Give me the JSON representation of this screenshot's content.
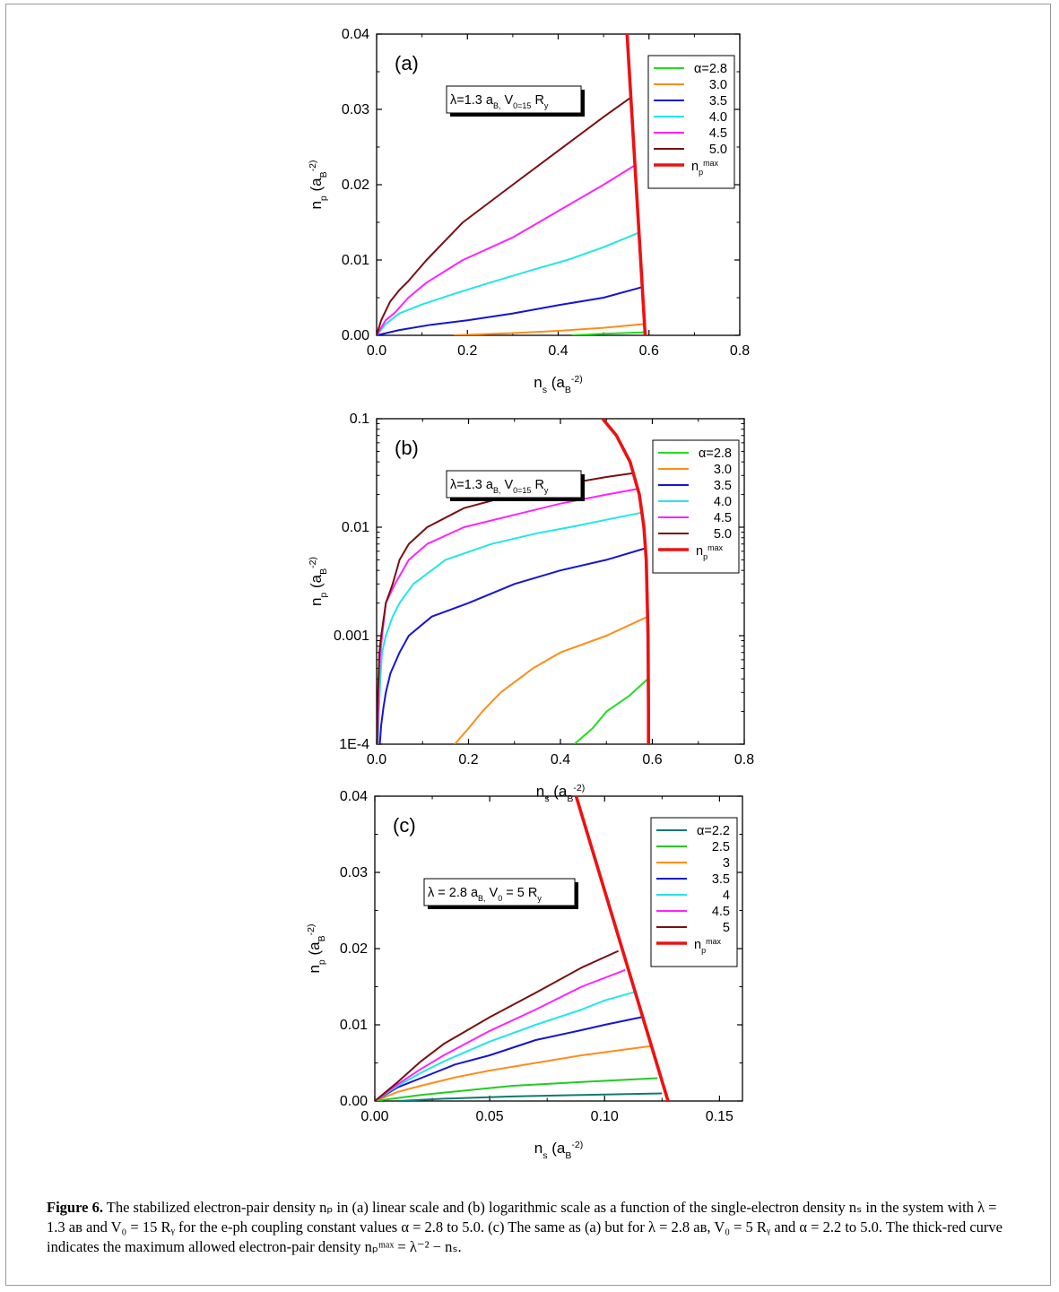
{
  "caption": {
    "label": "Figure 6.",
    "text": "The stabilized electron-pair density nₚ in (a) linear scale and (b) logarithmic scale as a function of the single-electron density nₛ in the system with λ = 1.3 aʙ and V₀ = 15 Rᵧ for the e-ph coupling constant values α = 2.8 to 5.0. (c) The same as (a) but for λ = 2.8 aʙ, V₀ = 5 Rᵧ and α = 2.2 to 5.0. The thick-red curve indicates the maximum allowed electron-pair density nₚᵐᵃˣ = λ⁻² − nₛ."
  },
  "colors": {
    "2.2": "#0f7a72",
    "2.5": "#22cc22",
    "2.8": "#22dd22",
    "3.0": "#ff8c1a",
    "3.5": "#1414d4",
    "4.0": "#22e6e6",
    "4.5": "#ff22ff",
    "5.0": "#7a1010",
    "npmax": "#ee1111"
  },
  "chart_data": [
    {
      "type": "line",
      "panel_label": "(a)",
      "annotation": "λ=1.3 a_B, V_0=15 R_y",
      "xlabel": "n_s (a_B^-2)",
      "ylabel": "n_p (a_B^-2)",
      "xlim": [
        0.0,
        0.8
      ],
      "ylim": [
        0.0,
        0.04
      ],
      "yscale": "linear",
      "xticks": [
        "0.0",
        "0.2",
        "0.4",
        "0.6",
        "0.8"
      ],
      "yticks": [
        "0.00",
        "0.01",
        "0.02",
        "0.03",
        "0.04"
      ],
      "legend_placement": "top-right",
      "series": [
        {
          "name": "α=2.8",
          "color_key": "2.8",
          "x": [
            0.43,
            0.5,
            0.59
          ],
          "y": [
            0.0,
            0.0002,
            0.0004
          ]
        },
        {
          "name": "3.0",
          "color_key": "3.0",
          "x": [
            0.17,
            0.3,
            0.4,
            0.5,
            0.59
          ],
          "y": [
            0.0,
            0.0003,
            0.0006,
            0.001,
            0.0015
          ]
        },
        {
          "name": "3.5",
          "color_key": "3.5",
          "x": [
            0.0,
            0.05,
            0.12,
            0.2,
            0.3,
            0.4,
            0.5,
            0.585
          ],
          "y": [
            0.0,
            0.0007,
            0.0014,
            0.002,
            0.0029,
            0.004,
            0.005,
            0.0064
          ]
        },
        {
          "name": "4.0",
          "color_key": "4.0",
          "x": [
            0.0,
            0.02,
            0.05,
            0.1,
            0.17,
            0.25,
            0.35,
            0.42,
            0.5,
            0.576
          ],
          "y": [
            0.0,
            0.0015,
            0.0029,
            0.0041,
            0.0055,
            0.007,
            0.0088,
            0.01,
            0.0117,
            0.0136
          ]
        },
        {
          "name": "4.5",
          "color_key": "4.5",
          "x": [
            0.0,
            0.02,
            0.04,
            0.07,
            0.11,
            0.19,
            0.3,
            0.4,
            0.5,
            0.567
          ],
          "y": [
            0.0,
            0.002,
            0.003,
            0.005,
            0.007,
            0.01,
            0.013,
            0.0165,
            0.02,
            0.0225
          ]
        },
        {
          "name": "5.0",
          "color_key": "5.0",
          "x": [
            0.0,
            0.01,
            0.03,
            0.05,
            0.07,
            0.11,
            0.19,
            0.3,
            0.4,
            0.5,
            0.558
          ],
          "y": [
            0.0,
            0.002,
            0.0045,
            0.006,
            0.0072,
            0.01,
            0.015,
            0.02,
            0.0245,
            0.029,
            0.0315
          ]
        },
        {
          "name": "n_p^max",
          "color_key": "npmax",
          "x": [
            0.5517,
            0.5917
          ],
          "y": [
            0.04,
            0.0
          ]
        }
      ]
    },
    {
      "type": "line",
      "panel_label": "(b)",
      "annotation": "λ=1.3 a_B, V_0=15 R_y",
      "xlabel": "n_s (a_B^-2)",
      "ylabel": "n_p (a_B^-2)",
      "xlim": [
        0.0,
        0.8
      ],
      "ylim": [
        0.0001,
        0.1
      ],
      "yscale": "log",
      "xticks": [
        "0.0",
        "0.2",
        "0.4",
        "0.6",
        "0.8"
      ],
      "yticks": [
        "1E-4",
        "0.001",
        "0.01",
        "0.1"
      ],
      "legend_placement": "top-right",
      "series": [
        {
          "name": "α=2.8",
          "color_key": "2.8",
          "x": [
            0.43,
            0.47,
            0.5,
            0.55,
            0.59
          ],
          "y": [
            0.0001,
            0.00014,
            0.0002,
            0.00028,
            0.0004
          ]
        },
        {
          "name": "3.0",
          "color_key": "3.0",
          "x": [
            0.17,
            0.2,
            0.23,
            0.27,
            0.34,
            0.4,
            0.5,
            0.59
          ],
          "y": [
            0.0001,
            0.00014,
            0.0002,
            0.0003,
            0.0005,
            0.0007,
            0.001,
            0.0015
          ]
        },
        {
          "name": "3.5",
          "color_key": "3.5",
          "x": [
            0.007,
            0.01,
            0.015,
            0.02,
            0.03,
            0.05,
            0.07,
            0.12,
            0.2,
            0.3,
            0.4,
            0.5,
            0.585
          ],
          "y": [
            0.0001,
            0.00015,
            0.00022,
            0.0003,
            0.00045,
            0.0007,
            0.001,
            0.0015,
            0.002,
            0.003,
            0.004,
            0.005,
            0.0064
          ]
        },
        {
          "name": "4.0",
          "color_key": "4.0",
          "x": [
            0.003,
            0.005,
            0.008,
            0.012,
            0.02,
            0.035,
            0.05,
            0.08,
            0.15,
            0.25,
            0.35,
            0.42,
            0.5,
            0.576
          ],
          "y": [
            0.0001,
            0.0002,
            0.0004,
            0.0007,
            0.001,
            0.0015,
            0.002,
            0.003,
            0.005,
            0.007,
            0.0088,
            0.01,
            0.0117,
            0.0136
          ]
        },
        {
          "name": "4.5",
          "color_key": "4.5",
          "x": [
            0.002,
            0.004,
            0.007,
            0.012,
            0.02,
            0.04,
            0.07,
            0.11,
            0.19,
            0.3,
            0.4,
            0.5,
            0.567
          ],
          "y": [
            0.0001,
            0.0003,
            0.0006,
            0.001,
            0.002,
            0.003,
            0.005,
            0.007,
            0.01,
            0.013,
            0.0165,
            0.02,
            0.0225
          ]
        },
        {
          "name": "5.0",
          "color_key": "5.0",
          "x": [
            0.001,
            0.003,
            0.006,
            0.01,
            0.02,
            0.035,
            0.05,
            0.07,
            0.11,
            0.19,
            0.3,
            0.4,
            0.5,
            0.558
          ],
          "y": [
            0.0001,
            0.0003,
            0.0007,
            0.001,
            0.002,
            0.003,
            0.005,
            0.007,
            0.01,
            0.015,
            0.02,
            0.0245,
            0.029,
            0.0315
          ]
        },
        {
          "name": "n_p^max",
          "color_key": "npmax",
          "x": [
            0.4917,
            0.5217,
            0.5517,
            0.5717,
            0.5817,
            0.5867,
            0.5907,
            0.5916,
            0.5917
          ],
          "y": [
            0.1,
            0.07,
            0.04,
            0.02,
            0.01,
            0.005,
            0.001,
            0.0002,
            0.0001
          ]
        }
      ]
    },
    {
      "type": "line",
      "panel_label": "(c)",
      "annotation": "λ = 2.8 a_B, V_0 = 5 R_y",
      "xlabel": "n_s (a_B^-2)",
      "ylabel": "n_p (a_B^-2)",
      "xlim": [
        0.0,
        0.16
      ],
      "ylim": [
        0.0,
        0.04
      ],
      "yscale": "linear",
      "xticks": [
        "0.00",
        "0.05",
        "0.10",
        "0.15"
      ],
      "yticks": [
        "0.00",
        "0.01",
        "0.02",
        "0.03",
        "0.04"
      ],
      "legend_placement": "top-right",
      "series": [
        {
          "name": "α=2.2",
          "color_key": "2.2",
          "x": [
            0.01,
            0.03,
            0.06,
            0.09,
            0.125
          ],
          "y": [
            0.0,
            0.0003,
            0.0006,
            0.0008,
            0.001
          ]
        },
        {
          "name": "2.5",
          "color_key": "2.5",
          "x": [
            0.0,
            0.02,
            0.04,
            0.06,
            0.09,
            0.123
          ],
          "y": [
            0.0,
            0.0008,
            0.0014,
            0.002,
            0.0025,
            0.003
          ]
        },
        {
          "name": "3",
          "color_key": "3.0",
          "x": [
            0.0,
            0.01,
            0.02,
            0.035,
            0.05,
            0.07,
            0.09,
            0.12
          ],
          "y": [
            0.0,
            0.0012,
            0.002,
            0.0031,
            0.004,
            0.005,
            0.006,
            0.0072
          ]
        },
        {
          "name": "3.5",
          "color_key": "3.5",
          "x": [
            0.0,
            0.01,
            0.02,
            0.035,
            0.05,
            0.07,
            0.09,
            0.1,
            0.116
          ],
          "y": [
            0.0,
            0.0018,
            0.003,
            0.0048,
            0.006,
            0.008,
            0.0093,
            0.01,
            0.011
          ]
        },
        {
          "name": "4",
          "color_key": "4.0",
          "x": [
            0.0,
            0.01,
            0.02,
            0.03,
            0.05,
            0.07,
            0.09,
            0.1,
            0.113
          ],
          "y": [
            0.0,
            0.002,
            0.0037,
            0.0052,
            0.0078,
            0.01,
            0.012,
            0.0132,
            0.0143
          ]
        },
        {
          "name": "4.5",
          "color_key": "4.5",
          "x": [
            0.0,
            0.01,
            0.02,
            0.03,
            0.05,
            0.07,
            0.09,
            0.109
          ],
          "y": [
            0.0,
            0.0022,
            0.0042,
            0.006,
            0.0092,
            0.012,
            0.015,
            0.0172
          ]
        },
        {
          "name": "5",
          "color_key": "5.0",
          "x": [
            0.0,
            0.01,
            0.02,
            0.03,
            0.05,
            0.07,
            0.09,
            0.106
          ],
          "y": [
            0.0,
            0.0025,
            0.0052,
            0.0075,
            0.011,
            0.0142,
            0.0175,
            0.0197
          ]
        },
        {
          "name": "n_p^max",
          "color_key": "npmax",
          "x": [
            0.0876,
            0.1276
          ],
          "y": [
            0.04,
            0.0
          ]
        }
      ]
    }
  ]
}
